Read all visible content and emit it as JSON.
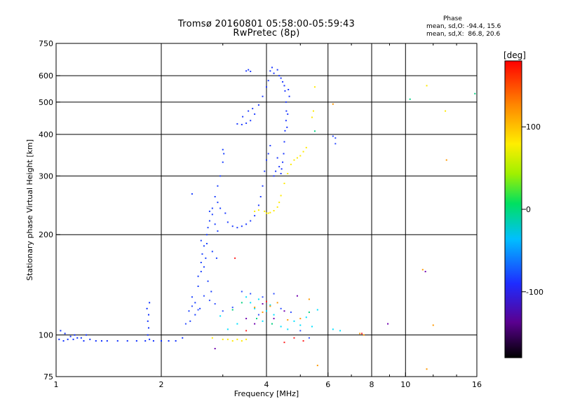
{
  "chart_data": {
    "type": "scatter",
    "title": "Tromsø 20160801 05:58:00-05:59:43",
    "subtitle": "RwPretec (8p)",
    "xlabel": "Frequency [MHz]",
    "ylabel": "Stationary phase Virtual Height [km]",
    "x_scale": "log",
    "y_scale": "log",
    "xlim": [
      1,
      16
    ],
    "ylim": [
      75,
      750
    ],
    "x_ticks": [
      1,
      2,
      4,
      6,
      8,
      10,
      16
    ],
    "x_tick_labels": [
      "1",
      "2",
      "4",
      "6",
      "8",
      "10",
      "16"
    ],
    "y_ticks": [
      75,
      100,
      200,
      300,
      400,
      500,
      600,
      750
    ],
    "y_tick_labels": [
      "75",
      "100",
      "200",
      "300",
      "400",
      "500",
      "600",
      "750"
    ],
    "grid": true,
    "stats": {
      "heading": "Phase",
      "line_o": "mean, sd,O: -94.4, 15.6",
      "line_x": "mean, sd,X:  86.8, 20.6"
    },
    "colorbar": {
      "label": "[deg]",
      "range": [
        -180,
        180
      ],
      "ticks": [
        100,
        0,
        -100
      ],
      "tick_labels": [
        "100",
        "0",
        "-100"
      ]
    },
    "series": [
      {
        "color": "#0a2cff",
        "points": [
          [
            1.02,
            97
          ],
          [
            1.05,
            96
          ],
          [
            1.08,
            97
          ],
          [
            1.1,
            99
          ],
          [
            1.12,
            97
          ],
          [
            1.15,
            98
          ],
          [
            1.18,
            98
          ],
          [
            1.2,
            96
          ],
          [
            1.25,
            97
          ],
          [
            1.3,
            96
          ],
          [
            1.35,
            96
          ],
          [
            1.4,
            96
          ],
          [
            1.5,
            96
          ],
          [
            1.6,
            96
          ],
          [
            1.7,
            96
          ],
          [
            1.8,
            96
          ],
          [
            1.85,
            97
          ],
          [
            1.9,
            96
          ],
          [
            2.0,
            96
          ],
          [
            2.1,
            96
          ],
          [
            2.2,
            96
          ],
          [
            2.3,
            98
          ],
          [
            1.03,
            103
          ],
          [
            1.06,
            101
          ],
          [
            1.13,
            100
          ],
          [
            1.22,
            100
          ],
          [
            1.83,
            110
          ],
          [
            1.84,
            115
          ],
          [
            1.82,
            120
          ],
          [
            1.85,
            125
          ],
          [
            1.84,
            105
          ],
          [
            1.83,
            100
          ]
        ]
      },
      {
        "color": "#1a40ff",
        "points": [
          [
            2.4,
            118
          ],
          [
            2.45,
            130
          ],
          [
            2.5,
            125
          ],
          [
            2.55,
            150
          ],
          [
            2.6,
            165
          ],
          [
            2.62,
            175
          ],
          [
            2.65,
            185
          ],
          [
            2.7,
            200
          ],
          [
            2.72,
            210
          ],
          [
            2.75,
            220
          ],
          [
            2.8,
            240
          ],
          [
            2.85,
            260
          ],
          [
            2.9,
            280
          ],
          [
            2.95,
            300
          ],
          [
            3.0,
            330
          ],
          [
            3.02,
            350
          ],
          [
            3.0,
            360
          ],
          [
            2.9,
            250
          ],
          [
            2.95,
            240
          ],
          [
            2.75,
            235
          ],
          [
            2.8,
            230
          ],
          [
            2.85,
            215
          ],
          [
            2.9,
            205
          ],
          [
            2.55,
            140
          ],
          [
            2.6,
            155
          ],
          [
            2.65,
            160
          ],
          [
            2.68,
            170
          ],
          [
            2.72,
            145
          ],
          [
            2.78,
            135
          ],
          [
            2.42,
            110
          ],
          [
            2.5,
            115
          ],
          [
            2.58,
            120
          ],
          [
            2.45,
            265
          ],
          [
            2.6,
            192
          ],
          [
            2.7,
            188
          ],
          [
            2.8,
            178
          ],
          [
            2.88,
            170
          ]
        ]
      },
      {
        "color": "#1e3cff",
        "points": [
          [
            3.5,
            620
          ],
          [
            3.55,
            625
          ],
          [
            3.6,
            618
          ],
          [
            3.05,
            232
          ],
          [
            3.1,
            218
          ],
          [
            3.2,
            212
          ],
          [
            3.3,
            210
          ],
          [
            3.4,
            212
          ],
          [
            3.5,
            215
          ],
          [
            3.6,
            220
          ],
          [
            3.7,
            228
          ],
          [
            3.8,
            245
          ],
          [
            3.85,
            260
          ],
          [
            3.9,
            280
          ],
          [
            3.95,
            310
          ],
          [
            4.0,
            335
          ],
          [
            4.05,
            350
          ],
          [
            4.1,
            370
          ],
          [
            3.3,
            430
          ],
          [
            3.4,
            428
          ],
          [
            3.5,
            432
          ],
          [
            3.6,
            440
          ],
          [
            3.7,
            460
          ],
          [
            3.8,
            490
          ],
          [
            3.9,
            520
          ],
          [
            4.0,
            555
          ],
          [
            4.05,
            580
          ],
          [
            3.42,
            452
          ],
          [
            3.55,
            470
          ],
          [
            3.65,
            478
          ]
        ]
      },
      {
        "color": "#1a36ff",
        "points": [
          [
            4.1,
            620
          ],
          [
            4.15,
            635
          ],
          [
            4.2,
            610
          ],
          [
            4.3,
            625
          ],
          [
            4.35,
            600
          ],
          [
            4.4,
            590
          ],
          [
            4.45,
            575
          ],
          [
            4.5,
            560
          ],
          [
            4.52,
            540
          ],
          [
            4.55,
            500
          ],
          [
            4.56,
            470
          ],
          [
            4.55,
            440
          ],
          [
            4.52,
            410
          ],
          [
            4.5,
            380
          ],
          [
            4.48,
            350
          ],
          [
            4.45,
            330
          ],
          [
            4.42,
            315
          ],
          [
            4.4,
            305
          ],
          [
            4.35,
            320
          ],
          [
            4.3,
            340
          ],
          [
            4.25,
            310
          ],
          [
            4.2,
            300
          ],
          [
            4.62,
            545
          ],
          [
            4.65,
            520
          ],
          [
            4.6,
            460
          ],
          [
            4.58,
            420
          ]
        ]
      },
      {
        "color": "#ffea00",
        "points": [
          [
            3.95,
            235
          ],
          [
            4.0,
            232
          ],
          [
            4.05,
            232
          ],
          [
            4.1,
            233
          ],
          [
            4.2,
            236
          ],
          [
            4.3,
            242
          ],
          [
            4.35,
            250
          ],
          [
            4.4,
            262
          ],
          [
            4.5,
            285
          ],
          [
            4.6,
            305
          ],
          [
            4.7,
            325
          ],
          [
            4.8,
            335
          ],
          [
            4.9,
            340
          ],
          [
            5.0,
            345
          ],
          [
            5.1,
            355
          ],
          [
            5.2,
            365
          ],
          [
            3.8,
            237
          ],
          [
            3.7,
            235
          ],
          [
            2.8,
            98
          ],
          [
            3.0,
            97
          ],
          [
            3.1,
            97
          ],
          [
            3.2,
            96
          ],
          [
            3.3,
            97
          ],
          [
            3.4,
            96
          ],
          [
            3.5,
            97
          ],
          [
            5.5,
            555
          ],
          [
            5.45,
            470
          ],
          [
            5.4,
            450
          ],
          [
            11.5,
            560
          ],
          [
            13.0,
            470
          ]
        ]
      },
      {
        "color": "#00e0ff",
        "points": [
          [
            3.5,
            130
          ],
          [
            3.6,
            125
          ],
          [
            3.7,
            120
          ],
          [
            3.8,
            128
          ],
          [
            3.9,
            110
          ],
          [
            4.0,
            118
          ],
          [
            4.1,
            123
          ],
          [
            4.2,
            115
          ],
          [
            4.4,
            106
          ],
          [
            4.6,
            104
          ],
          [
            4.8,
            110
          ],
          [
            5.0,
            107
          ],
          [
            5.2,
            113
          ],
          [
            5.4,
            106
          ],
          [
            5.6,
            119
          ],
          [
            6.2,
            104
          ],
          [
            6.5,
            103
          ],
          [
            2.95,
            114
          ],
          [
            3.1,
            104
          ],
          [
            3.3,
            108
          ]
        ]
      },
      {
        "color": "#3050ff",
        "points": [
          [
            2.35,
            108
          ],
          [
            2.45,
            122
          ],
          [
            2.55,
            119
          ],
          [
            2.65,
            131
          ],
          [
            2.75,
            127
          ],
          [
            2.85,
            124
          ],
          [
            3.0,
            118
          ],
          [
            3.2,
            121
          ],
          [
            3.4,
            135
          ],
          [
            3.6,
            133
          ],
          [
            3.8,
            115
          ],
          [
            3.9,
            130
          ],
          [
            4.2,
            133
          ],
          [
            4.4,
            120
          ],
          [
            4.7,
            117
          ],
          [
            5.0,
            103
          ],
          [
            5.3,
            98
          ],
          [
            6.3,
            390
          ],
          [
            6.3,
            375
          ],
          [
            6.2,
            395
          ]
        ]
      },
      {
        "color": "#ff9900",
        "points": [
          [
            3.7,
            121
          ],
          [
            3.9,
            117
          ],
          [
            4.1,
            122
          ],
          [
            4.3,
            125
          ],
          [
            4.6,
            111
          ],
          [
            5.0,
            112
          ],
          [
            5.3,
            128
          ],
          [
            5.6,
            81
          ],
          [
            6.2,
            493
          ],
          [
            7.4,
            101
          ],
          [
            7.6,
            100
          ],
          [
            11.2,
            157
          ],
          [
            12.0,
            107
          ],
          [
            13.1,
            335
          ],
          [
            11.5,
            79
          ]
        ]
      },
      {
        "color": "#7000b0",
        "points": [
          [
            3.5,
            112
          ],
          [
            3.7,
            108
          ],
          [
            3.9,
            124
          ],
          [
            4.2,
            112
          ],
          [
            4.5,
            118
          ],
          [
            4.9,
            131
          ],
          [
            8.9,
            108
          ],
          [
            11.4,
            155
          ],
          [
            2.85,
            91
          ]
        ]
      },
      {
        "color": "#00d080",
        "points": [
          [
            3.2,
            119
          ],
          [
            3.4,
            125
          ],
          [
            3.75,
            112
          ],
          [
            4.15,
            108
          ],
          [
            5.5,
            409
          ],
          [
            10.3,
            510
          ],
          [
            15.8,
            530
          ],
          [
            5.3,
            117
          ]
        ]
      },
      {
        "color": "#ff2020",
        "points": [
          [
            3.25,
            170
          ],
          [
            3.5,
            103
          ],
          [
            4.0,
            126
          ],
          [
            4.5,
            95
          ],
          [
            4.8,
            98
          ],
          [
            5.1,
            96
          ],
          [
            7.5,
            101
          ]
        ]
      }
    ]
  }
}
